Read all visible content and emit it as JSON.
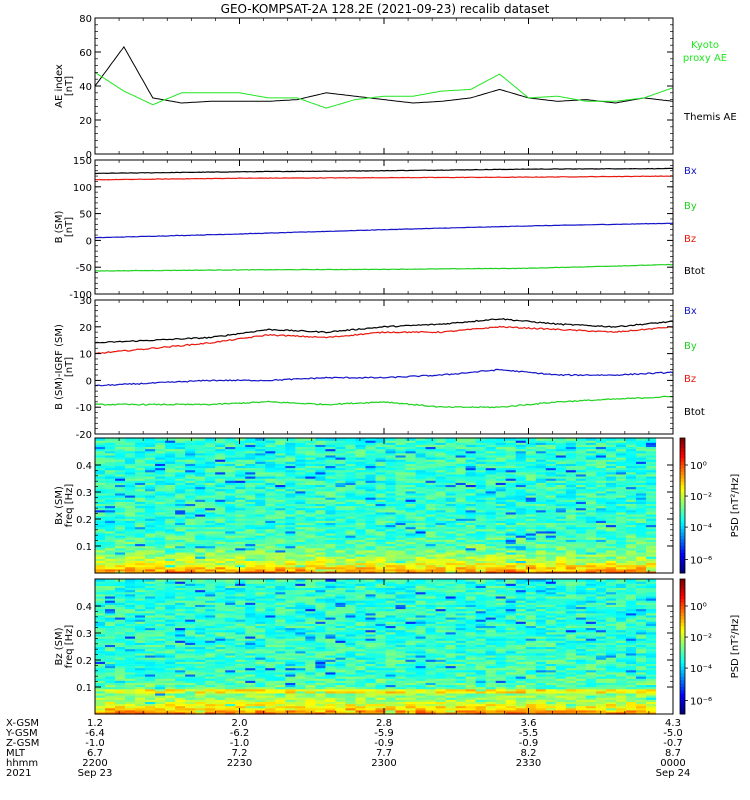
{
  "title": "GEO-KOMPSAT-2A 128.2E (2021-09-23) recalib dataset",
  "colors": {
    "black": "#000000",
    "red": "#e8160c",
    "green": "#1ed21e",
    "blue": "#1414c8",
    "proxy": "#22e622"
  },
  "panels": [
    {
      "id": "ae",
      "ylabel": [
        "AE index",
        "[nT]"
      ],
      "ylim": [
        0,
        80
      ],
      "yticks": [
        0,
        20,
        40,
        60,
        80
      ],
      "legend": [
        {
          "text": "Kyoto",
          "color": "#22e622"
        },
        {
          "text": "proxy AE",
          "color": "#22e622"
        },
        {
          "text": "Themis AE",
          "color": "#000000"
        }
      ]
    },
    {
      "id": "bsm",
      "ylabel": [
        "B (SM)",
        "[nT]"
      ],
      "ylim": [
        -100,
        150
      ],
      "yticks": [
        -100,
        -50,
        0,
        50,
        100,
        150
      ],
      "legend": [
        {
          "text": "Bx",
          "color": "#1414c8"
        },
        {
          "text": "By",
          "color": "#1ed21e"
        },
        {
          "text": "Bz",
          "color": "#e8160c"
        },
        {
          "text": "Btot",
          "color": "#000000"
        }
      ]
    },
    {
      "id": "bigrf",
      "ylabel": [
        "B (SM)-IGRF (SM)",
        "[nT]"
      ],
      "ylim": [
        -20,
        30
      ],
      "yticks": [
        -20,
        -10,
        0,
        10,
        20,
        30
      ],
      "legend": [
        {
          "text": "Bx",
          "color": "#1414c8"
        },
        {
          "text": "By",
          "color": "#1ed21e"
        },
        {
          "text": "Bz",
          "color": "#e8160c"
        },
        {
          "text": "Btot",
          "color": "#000000"
        }
      ]
    },
    {
      "id": "bxpsd",
      "ylabel": [
        "Bx (SM)",
        "freq [Hz]"
      ],
      "ylim": [
        0,
        0.5
      ],
      "yticks": [
        0.1,
        0.2,
        0.3,
        0.4
      ],
      "colorbar_label": "PSD [nT²/Hz]",
      "colorbar_ticks": [
        "10⁰",
        "10⁻²",
        "10⁻⁴",
        "10⁻⁶"
      ]
    },
    {
      "id": "bzpsd",
      "ylabel": [
        "Bz (SM)",
        "freq [Hz]"
      ],
      "ylim": [
        0,
        0.5
      ],
      "yticks": [
        0.1,
        0.2,
        0.3,
        0.4
      ],
      "colorbar_label": "PSD [nT²/Hz]",
      "colorbar_ticks": [
        "10⁰",
        "10⁻²",
        "10⁻⁴",
        "10⁻⁶"
      ]
    }
  ],
  "xaxis": {
    "row_labels": [
      "X-GSM",
      "Y-GSM",
      "Z-GSM",
      "MLT",
      "hhmm",
      "2021"
    ],
    "ticks": [
      [
        "1.2",
        "-6.4",
        "-1.0",
        "6.7",
        "2200",
        "Sep 23"
      ],
      [
        "2.0",
        "-6.2",
        "-1.0",
        "7.2",
        "2230",
        ""
      ],
      [
        "2.8",
        "-5.9",
        "-0.9",
        "7.7",
        "2300",
        ""
      ],
      [
        "3.6",
        "-5.5",
        "-0.9",
        "8.2",
        "2330",
        ""
      ],
      [
        "4.3",
        "-5.0",
        "-0.7",
        "8.7",
        "0000",
        "Sep 24"
      ]
    ]
  },
  "chart_data": [
    {
      "type": "line",
      "title": "GEO-KOMPSAT-2A 128.2E (2021-09-23) recalib dataset",
      "ylabel": "AE index [nT]",
      "x": [
        "22:00",
        "22:06",
        "22:12",
        "22:18",
        "22:24",
        "22:30",
        "22:36",
        "22:42",
        "22:48",
        "22:54",
        "23:00",
        "23:06",
        "23:12",
        "23:18",
        "23:24",
        "23:30",
        "23:36",
        "23:42",
        "23:48",
        "23:54",
        "00:00"
      ],
      "ylim": [
        0,
        80
      ],
      "series": [
        {
          "name": "Themis AE",
          "color": "#000000",
          "values": [
            40,
            63,
            33,
            30,
            31,
            31,
            31,
            32,
            36,
            34,
            32,
            30,
            31,
            33,
            38,
            33,
            31,
            32,
            30,
            33,
            31
          ]
        },
        {
          "name": "Kyoto proxy AE",
          "color": "#22e622",
          "values": [
            48,
            37,
            29,
            36,
            36,
            36,
            33,
            33,
            27,
            32,
            34,
            34,
            37,
            38,
            47,
            33,
            34,
            31,
            31,
            33,
            39
          ]
        }
      ]
    },
    {
      "type": "line",
      "ylabel": "B (SM) [nT]",
      "x": [
        "22:00",
        "22:30",
        "23:00",
        "23:30",
        "00:00"
      ],
      "ylim": [
        -100,
        150
      ],
      "series": [
        {
          "name": "Btot",
          "color": "#000000",
          "values": [
            125,
            128,
            130,
            133,
            134
          ]
        },
        {
          "name": "Bz",
          "color": "#e8160c",
          "values": [
            113,
            116,
            117,
            118,
            120
          ]
        },
        {
          "name": "Bx",
          "color": "#1414c8",
          "values": [
            5,
            12,
            20,
            27,
            32
          ]
        },
        {
          "name": "By",
          "color": "#1ed21e",
          "values": [
            -57,
            -55,
            -54,
            -52,
            -45
          ]
        }
      ]
    },
    {
      "type": "line",
      "ylabel": "B (SM)-IGRF (SM) [nT]",
      "x": [
        "22:00",
        "22:12",
        "22:24",
        "22:36",
        "22:48",
        "23:00",
        "23:12",
        "23:24",
        "23:36",
        "23:48",
        "00:00"
      ],
      "ylim": [
        -20,
        30
      ],
      "series": [
        {
          "name": "Btot",
          "color": "#000000",
          "values": [
            14,
            15,
            16,
            19,
            18,
            20,
            21,
            23,
            21,
            20,
            22
          ]
        },
        {
          "name": "Bz",
          "color": "#e8160c",
          "values": [
            10,
            12,
            14,
            17,
            16,
            18,
            18,
            20,
            19,
            18,
            20
          ]
        },
        {
          "name": "Bx",
          "color": "#1414c8",
          "values": [
            -2,
            -1,
            0,
            0,
            1,
            1,
            2,
            4,
            2,
            2,
            3
          ]
        },
        {
          "name": "By",
          "color": "#1ed21e",
          "values": [
            -9,
            -9,
            -9,
            -8,
            -9,
            -8,
            -10,
            -10,
            -8,
            -7,
            -6
          ]
        }
      ]
    },
    {
      "type": "heatmap",
      "ylabel": "Bx (SM) freq [Hz]",
      "ylim": [
        0,
        0.5
      ],
      "colorbar": "PSD [nT²/Hz]"
    },
    {
      "type": "heatmap",
      "ylabel": "Bz (SM) freq [Hz]",
      "ylim": [
        0,
        0.5
      ],
      "colorbar": "PSD [nT²/Hz]"
    }
  ]
}
